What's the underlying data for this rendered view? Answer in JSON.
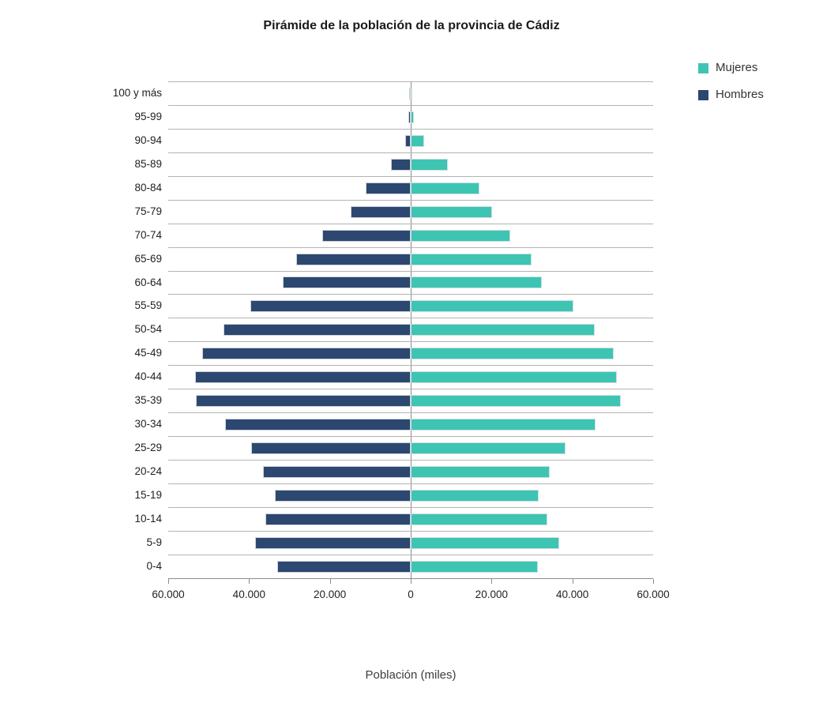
{
  "page": {
    "background": "#ffffff"
  },
  "chart_data": {
    "type": "bar",
    "subtype": "population-pyramid",
    "title": "Pirámide de la población de la provincia de Cádiz",
    "xlabel": "Población (miles)",
    "categories": [
      "100 y más",
      "95-99",
      "90-94",
      "85-89",
      "80-84",
      "75-79",
      "70-74",
      "65-69",
      "60-64",
      "55-59",
      "50-54",
      "45-49",
      "40-44",
      "35-39",
      "30-34",
      "25-29",
      "20-24",
      "15-19",
      "10-14",
      "5-9",
      "0-4"
    ],
    "series": [
      {
        "name": "Mujeres",
        "side": "right",
        "color": "#3ec4b3",
        "values": [
          300,
          800,
          3400,
          9200,
          17000,
          20100,
          24700,
          29900,
          32500,
          40200,
          45600,
          50300,
          51000,
          51900,
          45700,
          38300,
          34400,
          31600,
          33900,
          36700,
          31400
        ]
      },
      {
        "name": "Hombres",
        "side": "left",
        "color": "#2c4770",
        "values": [
          100,
          500,
          1300,
          4800,
          11100,
          14800,
          21800,
          28300,
          31700,
          39700,
          46300,
          51600,
          53400,
          53200,
          45900,
          39400,
          36500,
          33600,
          35900,
          38500,
          33000
        ]
      }
    ],
    "x_ticks": [
      "60.000",
      "40.000",
      "20.000",
      "0",
      "20.000",
      "40.000",
      "60.000"
    ],
    "x_max": 60000,
    "grid": "horizontal",
    "gridline_color": "#b3b3b3",
    "axis_color": "#8c8c8c",
    "legend_position": "top-right"
  }
}
